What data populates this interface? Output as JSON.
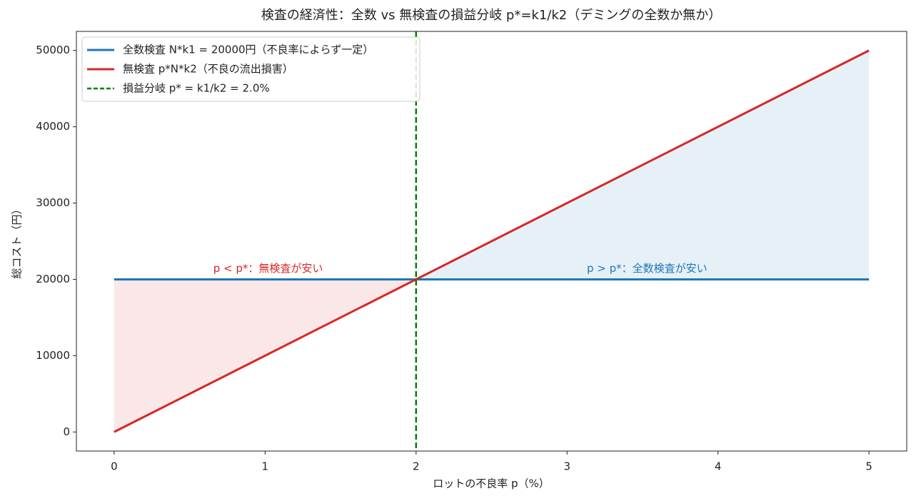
{
  "chart_data": {
    "type": "line",
    "title": "検査の経済性：全数 vs 無検査の損益分岐 p*=k1/k2（デミングの全数か無か）",
    "xlabel": "ロットの不良率 p（%）",
    "ylabel": "総コスト（円）",
    "x": [
      0,
      5
    ],
    "series": [
      {
        "name": "全数検査 N*k1 = 20000円（不良率によらず一定）",
        "color": "#1f77b4",
        "values": [
          20000,
          20000
        ]
      },
      {
        "name": "無検査 p*N*k2（不良の流出損害）",
        "color": "#d62728",
        "values": [
          0,
          50000
        ]
      }
    ],
    "vline": {
      "x": 2,
      "name": "損益分岐 p* = k1/k2 = 2.0%",
      "color": "#008000"
    },
    "annotations": [
      {
        "text": "p < p*：無検査が安い",
        "color": "#d62728"
      },
      {
        "text": "p > p*：全数検査が安い",
        "color": "#1f77b4"
      }
    ],
    "xlim": [
      -0.25,
      5.25
    ],
    "ylim": [
      -2500,
      52500
    ],
    "xticks": [
      0,
      1,
      2,
      3,
      4,
      5
    ],
    "yticks": [
      0,
      10000,
      20000,
      30000,
      40000,
      50000
    ],
    "legend": "upper left"
  }
}
